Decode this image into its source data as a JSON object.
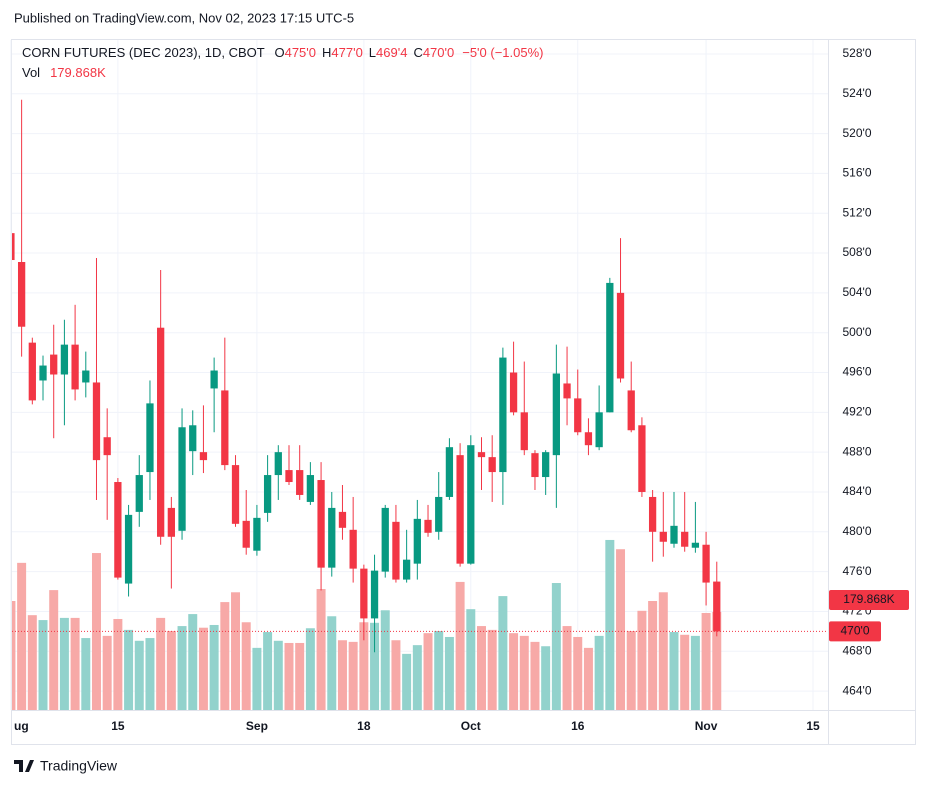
{
  "published": "Published on TradingView.com, Nov 02, 2023 17:15 UTC-5",
  "logo": "TradingView",
  "chart_data": {
    "type": "candlestick",
    "title": "CORN FUTURES (DEC 2023), 1D, CBOT",
    "legend": {
      "o_key": "O",
      "o": "475'0",
      "h_key": "H",
      "h": "477'0",
      "l_key": "L",
      "l": "469'4",
      "c_key": "C",
      "c": "470'0",
      "change": "−5'0 (−1.05%)",
      "vol_key": "Vol",
      "vol": "179.868K"
    },
    "open": [
      510,
      507.1,
      499,
      495.2,
      497.8,
      495.8,
      498.8,
      495,
      495,
      489.5,
      485,
      474.8,
      482,
      486,
      500.5,
      482.4,
      480.1,
      488.1,
      488,
      494.4,
      494.2,
      486.7,
      481.1,
      478.1,
      481.9,
      485.7,
      486.2,
      486.2,
      483,
      485.2,
      476.4,
      482,
      480.2,
      476.3,
      471.3,
      476,
      481,
      475.2,
      476.8,
      481.2,
      480,
      483.5,
      487.7,
      476.8,
      488,
      487.5,
      486,
      496,
      492,
      487.9,
      485.5,
      487.7,
      494.9,
      493.4,
      490,
      488.5,
      492,
      504,
      494.2,
      490.7,
      483.5,
      480,
      478.8,
      480,
      478.4,
      478.7,
      475
    ],
    "high": [
      513.3,
      523.4,
      499.5,
      497.7,
      500.8,
      501.3,
      502.8,
      498.1,
      507.5,
      492.4,
      485.4,
      482.7,
      487.7,
      495.2,
      506.3,
      483.5,
      492.4,
      492.2,
      492.7,
      497.5,
      499.5,
      487.7,
      484.2,
      482.7,
      487.7,
      488.7,
      488.7,
      488.7,
      487,
      487,
      484,
      484.7,
      483.5,
      476.7,
      477.7,
      482.7,
      482.7,
      480.2,
      483.2,
      482.7,
      486,
      489.4,
      488.9,
      489.7,
      489.5,
      489.7,
      498.5,
      499.1,
      497.1,
      488.2,
      488.2,
      498.8,
      498.6,
      496.3,
      491.4,
      494.7,
      505.5,
      509.5,
      497.1,
      491.5,
      484.2,
      484,
      484,
      484,
      483,
      480,
      477
    ],
    "low": [
      506.5,
      497.6,
      492.8,
      493.2,
      489.4,
      490.7,
      493.2,
      493.5,
      483.2,
      481.2,
      475.2,
      473.5,
      480.5,
      483.2,
      478.7,
      474.3,
      479.2,
      485.7,
      485.9,
      490,
      486.2,
      480.5,
      477.7,
      477.6,
      481,
      483.2,
      484.7,
      483.2,
      482.7,
      474.1,
      475.5,
      479.2,
      474.9,
      469.1,
      467.9,
      475.4,
      474.9,
      474.9,
      475.2,
      479.5,
      479.2,
      483.2,
      476.5,
      476.7,
      484.2,
      483,
      482.7,
      491.7,
      487.7,
      484.2,
      483.7,
      482.4,
      490.7,
      489.7,
      487.7,
      488.2,
      492,
      495,
      490,
      483.5,
      477,
      477.5,
      478.4,
      478,
      477.9,
      472.6,
      469.5
    ],
    "close": [
      507.3,
      500.6,
      493.2,
      496.7,
      495.8,
      498.8,
      494.3,
      496.2,
      487.2,
      487.7,
      475.4,
      481.7,
      485.7,
      492.9,
      479.5,
      479.5,
      490.5,
      490.7,
      487.2,
      496.2,
      486.7,
      480.8,
      478.4,
      481.4,
      485.7,
      488,
      485,
      483.7,
      485.7,
      476.4,
      482.4,
      480.4,
      476.3,
      471.3,
      476.1,
      482.4,
      475.2,
      477.2,
      481.3,
      479.9,
      483.5,
      488.5,
      476.8,
      488.7,
      487.5,
      486,
      497.5,
      492,
      488.2,
      485.5,
      488,
      495.9,
      493.4,
      490,
      488.7,
      492,
      505,
      495.4,
      490.2,
      484,
      480,
      479,
      480.6,
      478.5,
      478.9,
      474.9,
      470
    ],
    "volume": [
      200,
      270,
      174,
      165,
      220,
      169,
      169,
      132,
      288,
      136,
      167,
      147,
      127,
      132,
      169,
      145,
      154,
      176,
      151,
      156,
      198,
      216,
      161,
      114,
      143,
      127,
      123,
      123,
      150,
      222,
      172,
      128,
      125,
      161,
      160,
      183,
      128,
      103,
      119,
      141,
      145,
      134,
      235,
      185,
      154,
      147,
      209,
      141,
      136,
      125,
      117,
      233,
      154,
      134,
      114,
      136,
      312,
      295,
      145,
      182,
      200,
      216,
      143,
      138,
      136,
      178,
      179.868
    ],
    "volume_last_label": "179.868K",
    "volume_lim": [
      0,
      400
    ],
    "last_price": {
      "value": 470,
      "label": "470'0"
    },
    "up_color": "#089981",
    "down_color": "#f23645",
    "volume_up_color": "#92d2cc",
    "volume_down_color": "#f7a9a7",
    "xlim": [
      0.1,
      76.4
    ],
    "xticks": [
      {
        "value": 0,
        "label": "ug"
      },
      {
        "value": 10,
        "label": "15"
      },
      {
        "value": 23,
        "label": "Sep"
      },
      {
        "value": 33,
        "label": "18"
      },
      {
        "value": 43,
        "label": "Oct"
      },
      {
        "value": 53,
        "label": "16"
      },
      {
        "value": 65,
        "label": "Nov"
      },
      {
        "value": 75,
        "label": "15"
      }
    ],
    "ylim": [
      462.1,
      529.4
    ],
    "yticks": [
      {
        "value": 464,
        "label": "464'0"
      },
      {
        "value": 468,
        "label": "468'0"
      },
      {
        "value": 472,
        "label": "472'0"
      },
      {
        "value": 476,
        "label": "476'0"
      },
      {
        "value": 480,
        "label": "480'0"
      },
      {
        "value": 484,
        "label": "484'0"
      },
      {
        "value": 488,
        "label": "488'0"
      },
      {
        "value": 492,
        "label": "492'0"
      },
      {
        "value": 496,
        "label": "496'0"
      },
      {
        "value": 500,
        "label": "500'0"
      },
      {
        "value": 504,
        "label": "504'0"
      },
      {
        "value": 508,
        "label": "508'0"
      },
      {
        "value": 512,
        "label": "512'0"
      },
      {
        "value": 516,
        "label": "516'0"
      },
      {
        "value": 520,
        "label": "520'0"
      },
      {
        "value": 524,
        "label": "524'0"
      },
      {
        "value": 528,
        "label": "528'0"
      }
    ],
    "grid": true
  }
}
